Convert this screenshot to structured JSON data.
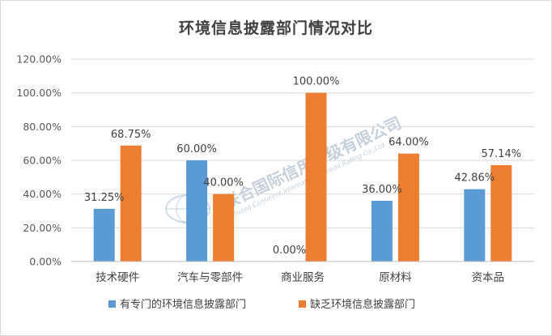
{
  "chart_data": {
    "type": "bar",
    "title": "环境信息披露部门情况对比",
    "categories": [
      "技术硬件",
      "汽车与零部件",
      "商业服务",
      "原材料",
      "资本品"
    ],
    "series": [
      {
        "name": "有专门的环境信息披露部门",
        "values": [
          31.25,
          60.0,
          0.0,
          36.0,
          42.86
        ],
        "labels": [
          "31.25%",
          "60.00%",
          "0.00%",
          "36.00%",
          "42.86%"
        ],
        "color": "#5b9bd5"
      },
      {
        "name": "缺乏环境信息披露部门",
        "values": [
          68.75,
          40.0,
          100.0,
          64.0,
          57.14
        ],
        "labels": [
          "68.75%",
          "40.00%",
          "100.00%",
          "64.00%",
          "57.14%"
        ],
        "color": "#ed7d31"
      }
    ],
    "yticks": [
      "0.00%",
      "20.00%",
      "40.00%",
      "60.00%",
      "80.00%",
      "100.00%",
      "120.00%"
    ],
    "ylim": [
      0,
      120
    ],
    "grid": true,
    "legend_position": "bottom"
  },
  "watermark": {
    "text": "联合国际信用评级有限公司",
    "subtext": "United Continent International Credit Rating Co.,Ltd"
  }
}
